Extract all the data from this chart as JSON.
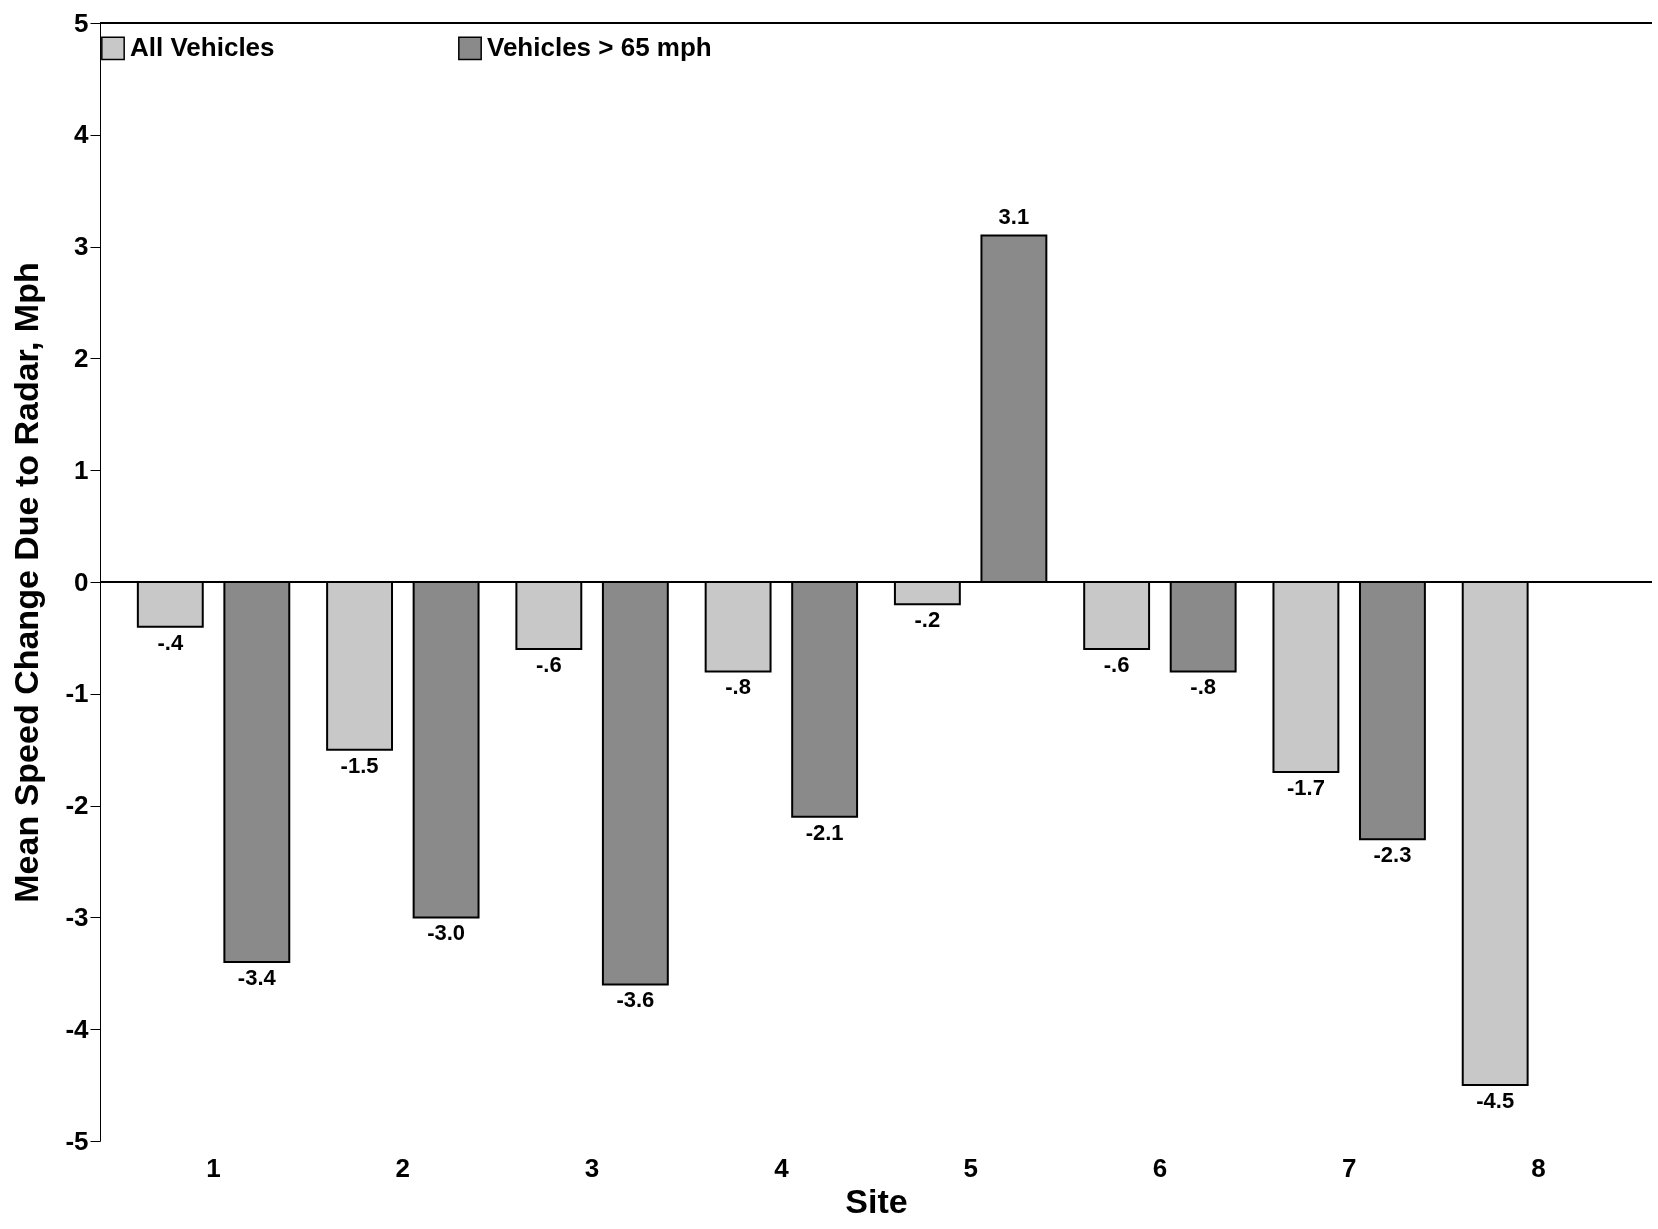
{
  "chart_data": {
    "type": "bar",
    "xlabel": "Site",
    "ylabel": "Mean Speed Change Due to Radar, Mph",
    "categories": [
      "1",
      "2",
      "3",
      "4",
      "5",
      "6",
      "7",
      "8"
    ],
    "series": [
      {
        "name": "All Vehicles",
        "color": "#c8c8c8",
        "values": [
          -0.4,
          -1.5,
          -0.6,
          -0.8,
          -0.2,
          -0.6,
          -1.7,
          -4.5
        ],
        "value_labels": [
          "-.4",
          "-1.5",
          "-.6",
          "-.8",
          "-.2",
          "-.6",
          "-1.7",
          "-4.5"
        ]
      },
      {
        "name": "Vehicles > 65 mph",
        "color": "#8a8a8a",
        "values": [
          -3.4,
          -3.0,
          -3.6,
          -2.1,
          3.1,
          -0.8,
          -2.3,
          null
        ],
        "value_labels": [
          "-3.4",
          "-3.0",
          "-3.6",
          "-2.1",
          "3.1",
          "-.8",
          "-2.3",
          null
        ]
      }
    ],
    "ylim": [
      -5,
      5
    ],
    "yticks": [
      -5,
      -4,
      -3,
      -2,
      -1,
      0,
      1,
      2,
      3,
      4,
      5
    ],
    "ref_lines": [
      {
        "axis": "y",
        "value": 0
      }
    ],
    "grid": false,
    "legend": "top"
  }
}
